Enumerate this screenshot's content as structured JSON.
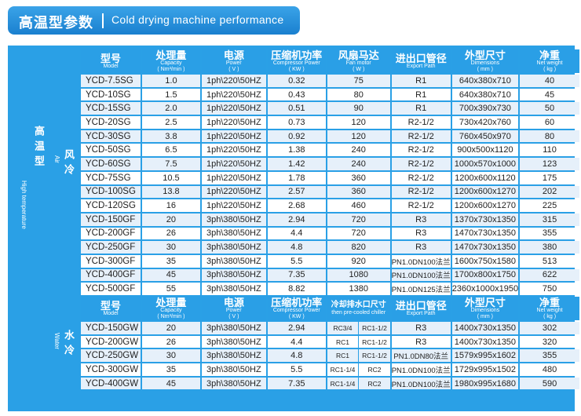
{
  "header": {
    "title_zh": "高温型参数",
    "title_en": "Cold drying machine performance"
  },
  "side_labels": {
    "group_zh": "高温型",
    "group_en": "High temperature",
    "air_zh": "风冷",
    "air_en": "Air",
    "water_zh": "水冷",
    "water_en": "Water"
  },
  "air_header": {
    "model": {
      "zh": "型号",
      "en": "Model",
      "unit": ""
    },
    "capacity": {
      "zh": "处理量",
      "en": "Capacity",
      "unit": "( Nm³/min )"
    },
    "power": {
      "zh": "电源",
      "en": "Power",
      "unit": "( V )"
    },
    "compressor": {
      "zh": "压缩机功率",
      "en": "Compressor Power",
      "unit": "( KW )"
    },
    "fan": {
      "zh": "风扇马达",
      "en": "Fan motor",
      "unit": "( W )"
    },
    "export": {
      "zh": "进出口管径",
      "en": "Export Path",
      "unit": ""
    },
    "dimensions": {
      "zh": "外型尺寸",
      "en": "Dimensions",
      "unit": "( mm )"
    },
    "weight": {
      "zh": "净重",
      "en": "Net weight",
      "unit": "( kg )"
    }
  },
  "air_rows": [
    {
      "model": "YCD-7.5SG",
      "capacity": "1.0",
      "power": "1ph\\220\\50HZ",
      "compressor": "0.32",
      "fan": "75",
      "export": "R1",
      "dimensions": "640x380x710",
      "weight": "40"
    },
    {
      "model": "YCD-10SG",
      "capacity": "1.5",
      "power": "1ph\\220\\50HZ",
      "compressor": "0.43",
      "fan": "80",
      "export": "R1",
      "dimensions": "640x380x710",
      "weight": "45"
    },
    {
      "model": "YCD-15SG",
      "capacity": "2.0",
      "power": "1ph\\220\\50HZ",
      "compressor": "0.51",
      "fan": "90",
      "export": "R1",
      "dimensions": "700x390x730",
      "weight": "50"
    },
    {
      "model": "YCD-20SG",
      "capacity": "2.5",
      "power": "1ph\\220\\50HZ",
      "compressor": "0.73",
      "fan": "120",
      "export": "R2-1/2",
      "dimensions": "730x420x760",
      "weight": "60"
    },
    {
      "model": "YCD-30SG",
      "capacity": "3.8",
      "power": "1ph\\220\\50HZ",
      "compressor": "0.92",
      "fan": "120",
      "export": "R2-1/2",
      "dimensions": "760x450x970",
      "weight": "80"
    },
    {
      "model": "YCD-50SG",
      "capacity": "6.5",
      "power": "1ph\\220\\50HZ",
      "compressor": "1.38",
      "fan": "240",
      "export": "R2-1/2",
      "dimensions": "900x500x1120",
      "weight": "110"
    },
    {
      "model": "YCD-60SG",
      "capacity": "7.5",
      "power": "1ph\\220\\50HZ",
      "compressor": "1.42",
      "fan": "240",
      "export": "R2-1/2",
      "dimensions": "1000x570x1000",
      "weight": "123"
    },
    {
      "model": "YCD-75SG",
      "capacity": "10.5",
      "power": "1ph\\220\\50HZ",
      "compressor": "1.78",
      "fan": "360",
      "export": "R2-1/2",
      "dimensions": "1200x600x1120",
      "weight": "175"
    },
    {
      "model": "YCD-100SG",
      "capacity": "13.8",
      "power": "1ph\\220\\50HZ",
      "compressor": "2.57",
      "fan": "360",
      "export": "R2-1/2",
      "dimensions": "1200x600x1270",
      "weight": "202"
    },
    {
      "model": "YCD-120SG",
      "capacity": "16",
      "power": "1ph\\220\\50HZ",
      "compressor": "2.68",
      "fan": "460",
      "export": "R2-1/2",
      "dimensions": "1200x600x1270",
      "weight": "225"
    },
    {
      "model": "YCD-150GF",
      "capacity": "20",
      "power": "3ph\\380\\50HZ",
      "compressor": "2.94",
      "fan": "720",
      "export": "R3",
      "dimensions": "1370x730x1350",
      "weight": "315"
    },
    {
      "model": "YCD-200GF",
      "capacity": "26",
      "power": "3ph\\380\\50HZ",
      "compressor": "4.4",
      "fan": "720",
      "export": "R3",
      "dimensions": "1470x730x1350",
      "weight": "355"
    },
    {
      "model": "YCD-250GF",
      "capacity": "30",
      "power": "3ph\\380\\50HZ",
      "compressor": "4.8",
      "fan": "820",
      "export": "R3",
      "dimensions": "1470x730x1350",
      "weight": "380"
    },
    {
      "model": "YCD-300GF",
      "capacity": "35",
      "power": "3ph\\380\\50HZ",
      "compressor": "5.5",
      "fan": "920",
      "export": "PN1.0DN100法兰",
      "dimensions": "1600x750x1580",
      "weight": "513"
    },
    {
      "model": "YCD-400GF",
      "capacity": "45",
      "power": "3ph\\380\\50HZ",
      "compressor": "7.35",
      "fan": "1080",
      "export": "PN1.0DN100法兰",
      "dimensions": "1700x800x1750",
      "weight": "622"
    },
    {
      "model": "YCD-500GF",
      "capacity": "55",
      "power": "3ph\\380\\50HZ",
      "compressor": "8.82",
      "fan": "1380",
      "export": "PN1.0DN125法兰",
      "dimensions": "2360x1000x1950",
      "weight": "750"
    }
  ],
  "water_header": {
    "model": {
      "zh": "型号",
      "en": "Model",
      "unit": ""
    },
    "capacity": {
      "zh": "处理量",
      "en": "Capacity",
      "unit": "( Nm³/min )"
    },
    "power": {
      "zh": "电源",
      "en": "Power",
      "unit": "( V )"
    },
    "compressor": {
      "zh": "压缩机功率",
      "en": "Compressor Power",
      "unit": "( KW )"
    },
    "cooling": {
      "zh": "冷却排水口尺寸",
      "en": "then pre-cooled chiller",
      "unit": ""
    },
    "export": {
      "zh": "进出口管径",
      "en": "Export Path",
      "unit": ""
    },
    "dimensions": {
      "zh": "外型尺寸",
      "en": "Dimensions",
      "unit": "( mm )"
    },
    "weight": {
      "zh": "净重",
      "en": "Net weight",
      "unit": "( kg )"
    }
  },
  "water_rows": [
    {
      "model": "YCD-150GW",
      "capacity": "20",
      "power": "3ph\\380\\50HZ",
      "compressor": "2.94",
      "cool_a": "RC3/4",
      "cool_b": "RC1-1/2",
      "export": "R3",
      "dimensions": "1400x730x1350",
      "weight": "302"
    },
    {
      "model": "YCD-200GW",
      "capacity": "26",
      "power": "3ph\\380\\50HZ",
      "compressor": "4.4",
      "cool_a": "RC1",
      "cool_b": "RC1-1/2",
      "export": "R3",
      "dimensions": "1400x730x1350",
      "weight": "320"
    },
    {
      "model": "YCD-250GW",
      "capacity": "30",
      "power": "3ph\\380\\50HZ",
      "compressor": "4.8",
      "cool_a": "RC1",
      "cool_b": "RC1-1/2",
      "export": "PN1.0DN80法兰",
      "dimensions": "1579x995x1602",
      "weight": "355"
    },
    {
      "model": "YCD-300GW",
      "capacity": "35",
      "power": "3ph\\380\\50HZ",
      "compressor": "5.5",
      "cool_a": "RC1-1/4",
      "cool_b": "RC2",
      "export": "PN1.0DN100法兰",
      "dimensions": "1729x995x1502",
      "weight": "480"
    },
    {
      "model": "YCD-400GW",
      "capacity": "45",
      "power": "3ph\\380\\50HZ",
      "compressor": "7.35",
      "cool_a": "RC1-1/4",
      "cool_b": "RC2",
      "export": "PN1.0DN100法兰",
      "dimensions": "1980x995x1680",
      "weight": "590"
    }
  ]
}
